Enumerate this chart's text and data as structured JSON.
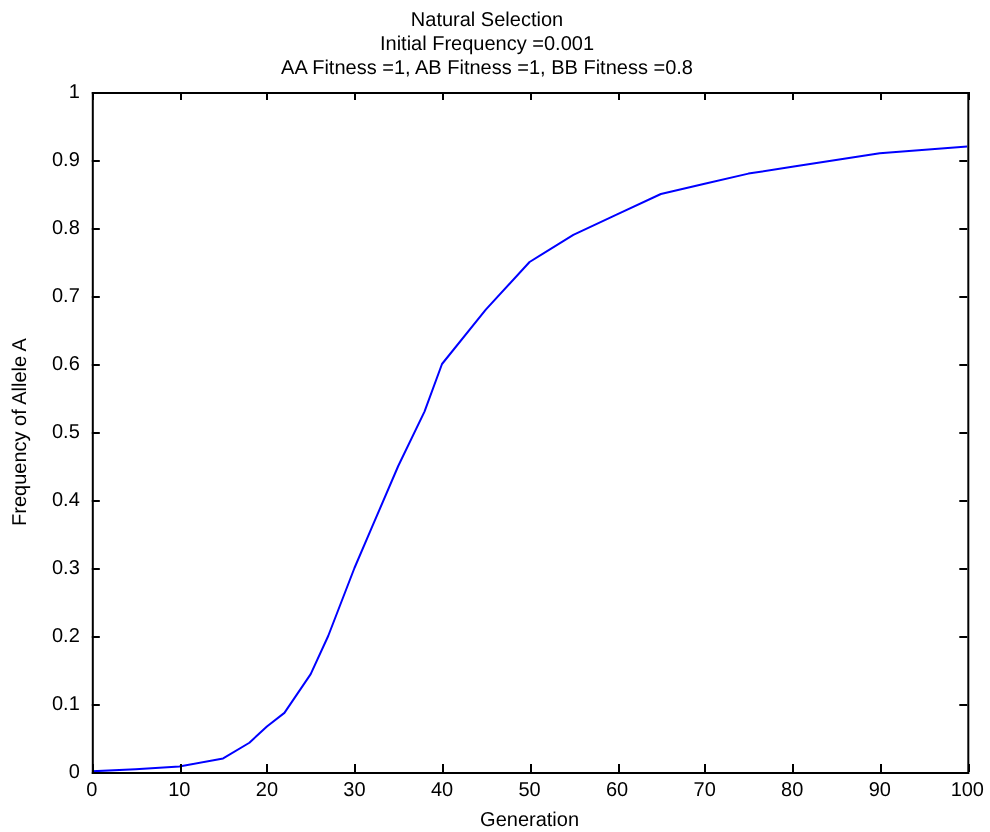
{
  "chart_data": {
    "type": "line",
    "title": "Natural Selection",
    "subtitle": [
      "Initial Frequency =0.001",
      "AA Fitness =1, AB Fitness =1, BB Fitness =0.8"
    ],
    "xlabel": "Generation",
    "ylabel": "Frequency of Allele A",
    "x": [
      0,
      5,
      10,
      15,
      18,
      20,
      22,
      25,
      27,
      30,
      32,
      35,
      38,
      40,
      45,
      50,
      55,
      60,
      65,
      70,
      75,
      80,
      90,
      100
    ],
    "series": [
      {
        "color": "#0000ff",
        "values": [
          0.001,
          0.004,
          0.008,
          0.02,
          0.043,
          0.067,
          0.087,
          0.144,
          0.2,
          0.3,
          0.36,
          0.45,
          0.53,
          0.6,
          0.68,
          0.75,
          0.79,
          0.82,
          0.85,
          0.865,
          0.88,
          0.89,
          0.91,
          0.92
        ]
      }
    ],
    "xlim": [
      0,
      100
    ],
    "xticks": [
      0,
      10,
      20,
      30,
      40,
      50,
      60,
      70,
      80,
      90,
      100
    ],
    "ylim": [
      0,
      1
    ],
    "yticks": [
      0,
      0.1,
      0.2,
      0.3,
      0.4,
      0.5,
      0.6,
      0.7,
      0.8,
      0.9,
      1
    ],
    "grid": false,
    "legend": false,
    "marker": "none",
    "line_style": "solid"
  }
}
